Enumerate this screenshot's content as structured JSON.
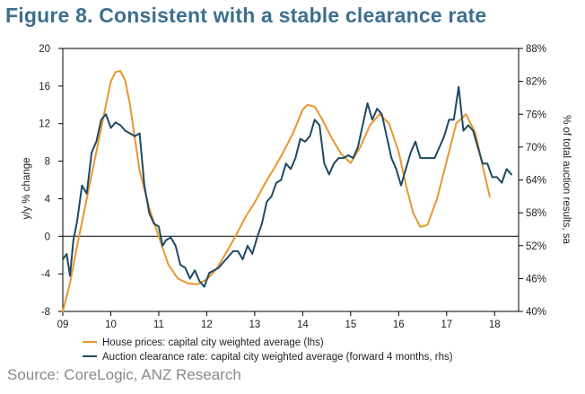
{
  "title": "Figure 8. Consistent with a stable clearance rate",
  "source": "Source: CoreLogic, ANZ Research",
  "chart_data": {
    "type": "line",
    "x_ticks": [
      "09",
      "10",
      "11",
      "12",
      "13",
      "14",
      "15",
      "16",
      "17",
      "18"
    ],
    "x_range": [
      2009.0,
      2018.5
    ],
    "left_axis": {
      "label": "y/y % change",
      "range": [
        -8,
        20
      ],
      "ticks": [
        20,
        16,
        12,
        8,
        4,
        0,
        -4,
        -8
      ]
    },
    "right_axis": {
      "label": "% of total auction results, sa",
      "range": [
        40,
        88
      ],
      "ticks": [
        "88%",
        "82%",
        "76%",
        "70%",
        "64%",
        "58%",
        "52%",
        "46%",
        "40%"
      ],
      "tick_values": [
        88,
        82,
        76,
        70,
        64,
        58,
        52,
        46,
        40
      ]
    },
    "series": [
      {
        "name": "House prices: capital city weighted average (lhs)",
        "axis": "left",
        "color": "#e8962e",
        "x": [
          2009.0,
          2009.15,
          2009.3,
          2009.5,
          2009.7,
          2009.9,
          2010.0,
          2010.1,
          2010.2,
          2010.3,
          2010.4,
          2010.5,
          2010.6,
          2010.8,
          2011.0,
          2011.2,
          2011.4,
          2011.6,
          2011.8,
          2012.0,
          2012.2,
          2012.4,
          2012.6,
          2012.8,
          2013.0,
          2013.2,
          2013.4,
          2013.6,
          2013.8,
          2014.0,
          2014.1,
          2014.25,
          2014.4,
          2014.6,
          2014.8,
          2015.0,
          2015.2,
          2015.4,
          2015.6,
          2015.8,
          2016.0,
          2016.15,
          2016.3,
          2016.45,
          2016.6,
          2016.8,
          2017.0,
          2017.2,
          2017.4,
          2017.6,
          2017.75,
          2017.9
        ],
        "y": [
          -8.0,
          -5.0,
          -1.0,
          4.0,
          9.0,
          14.0,
          16.5,
          17.5,
          17.6,
          16.6,
          14.0,
          10.5,
          7.0,
          3.0,
          0.0,
          -3.0,
          -4.5,
          -5.0,
          -5.1,
          -4.6,
          -3.5,
          -1.8,
          0.0,
          2.0,
          3.6,
          5.5,
          7.2,
          9.0,
          11.0,
          13.5,
          14.0,
          13.8,
          12.5,
          10.5,
          8.8,
          7.8,
          9.5,
          11.8,
          13.0,
          12.0,
          9.0,
          5.5,
          2.5,
          1.0,
          1.2,
          4.0,
          8.0,
          12.0,
          13.0,
          11.0,
          7.5,
          4.2
        ]
      },
      {
        "name": "Auction clearance rate: capital city weighted average (forward 4 months, rhs)",
        "axis": "right",
        "color": "#1e4a63",
        "x": [
          2009.0,
          2009.08,
          2009.15,
          2009.22,
          2009.3,
          2009.4,
          2009.5,
          2009.6,
          2009.7,
          2009.8,
          2009.9,
          2010.0,
          2010.1,
          2010.2,
          2010.3,
          2010.4,
          2010.5,
          2010.6,
          2010.7,
          2010.8,
          2010.9,
          2011.0,
          2011.08,
          2011.15,
          2011.25,
          2011.35,
          2011.45,
          2011.55,
          2011.65,
          2011.75,
          2011.85,
          2011.95,
          2012.05,
          2012.15,
          2012.25,
          2012.35,
          2012.45,
          2012.55,
          2012.65,
          2012.75,
          2012.85,
          2012.95,
          2013.05,
          2013.15,
          2013.25,
          2013.35,
          2013.45,
          2013.55,
          2013.65,
          2013.75,
          2013.85,
          2013.95,
          2014.05,
          2014.15,
          2014.25,
          2014.35,
          2014.45,
          2014.55,
          2014.65,
          2014.75,
          2014.85,
          2014.95,
          2015.05,
          2015.15,
          2015.25,
          2015.35,
          2015.45,
          2015.55,
          2015.65,
          2015.75,
          2015.85,
          2015.95,
          2016.05,
          2016.15,
          2016.25,
          2016.35,
          2016.45,
          2016.55,
          2016.65,
          2016.75,
          2016.85,
          2016.95,
          2017.05,
          2017.15,
          2017.25,
          2017.35,
          2017.45,
          2017.55,
          2017.65,
          2017.75,
          2017.85,
          2017.95,
          2018.05,
          2018.15,
          2018.25,
          2018.35
        ],
        "y": [
          49.5,
          50.5,
          46.5,
          53.0,
          56.5,
          63.0,
          61.5,
          69.0,
          71.0,
          75.0,
          76.0,
          73.5,
          74.5,
          74.0,
          73.0,
          72.5,
          72.0,
          72.5,
          63.0,
          58.0,
          56.0,
          55.5,
          52.0,
          53.0,
          53.5,
          52.0,
          48.5,
          48.0,
          46.0,
          47.5,
          45.5,
          44.5,
          47.0,
          47.5,
          48.0,
          49.0,
          50.0,
          51.0,
          51.0,
          49.5,
          52.0,
          50.5,
          53.5,
          56.0,
          60.0,
          61.0,
          63.5,
          64.0,
          67.0,
          66.0,
          68.0,
          71.5,
          71.0,
          72.0,
          75.0,
          74.0,
          67.0,
          65.0,
          67.0,
          68.0,
          68.0,
          68.5,
          68.0,
          70.0,
          74.0,
          78.0,
          75.0,
          77.0,
          76.0,
          72.0,
          68.0,
          66.0,
          63.0,
          66.0,
          69.0,
          71.0,
          68.0,
          68.0,
          68.0,
          68.0,
          70.0,
          72.0,
          75.0,
          75.0,
          81.0,
          73.0,
          74.0,
          73.0,
          70.0,
          67.0,
          67.0,
          64.5,
          64.5,
          63.5,
          66.0,
          65.0
        ]
      }
    ]
  }
}
